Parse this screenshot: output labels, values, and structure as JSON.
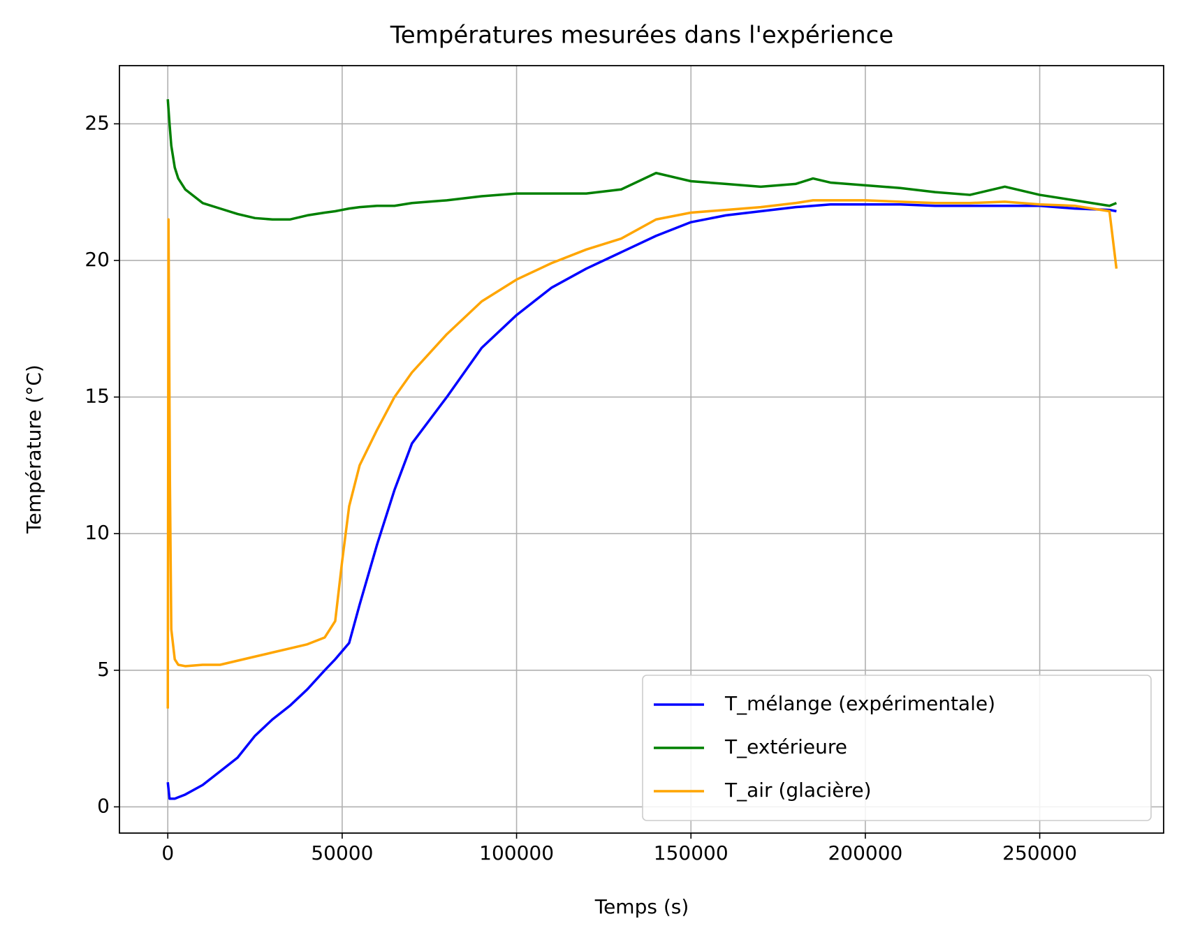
{
  "chart_data": {
    "type": "line",
    "title": "Températures mesurées dans l'expérience",
    "xlabel": "Temps (s)",
    "ylabel": "Température (°C)",
    "xlim": [
      -13865,
      285530
    ],
    "ylim": [
      -0.96,
      27.13
    ],
    "xticks": [
      0,
      50000,
      100000,
      150000,
      200000,
      250000
    ],
    "yticks": [
      0,
      5,
      10,
      15,
      20,
      25
    ],
    "grid": true,
    "legend": "lower right",
    "series": [
      {
        "name": "T_mélange (expérimentale)",
        "color": "#0000ff",
        "x": [
          0,
          500,
          1000,
          2000,
          3000,
          5000,
          10000,
          15000,
          20000,
          25000,
          30000,
          35000,
          40000,
          45000,
          48000,
          50000,
          52000,
          55000,
          60000,
          65000,
          70000,
          80000,
          90000,
          100000,
          110000,
          120000,
          130000,
          140000,
          150000,
          160000,
          170000,
          180000,
          185000,
          190000,
          200000,
          210000,
          220000,
          230000,
          240000,
          250000,
          260000,
          270000,
          272000
        ],
        "values": [
          0.9,
          0.3,
          0.3,
          0.3,
          0.35,
          0.45,
          0.8,
          1.3,
          1.8,
          2.6,
          3.2,
          3.7,
          4.3,
          5.0,
          5.4,
          5.7,
          6.0,
          7.4,
          9.6,
          11.6,
          13.3,
          15.0,
          16.8,
          18.0,
          19.0,
          19.7,
          20.3,
          20.9,
          21.4,
          21.65,
          21.8,
          21.95,
          22.0,
          22.05,
          22.05,
          22.05,
          22.0,
          22.0,
          22.0,
          22.0,
          21.9,
          21.85,
          21.8
        ]
      },
      {
        "name": "T_extérieure",
        "color": "#008000",
        "x": [
          0,
          500,
          1000,
          2000,
          3000,
          5000,
          10000,
          15000,
          20000,
          25000,
          30000,
          35000,
          40000,
          45000,
          48000,
          50000,
          52000,
          55000,
          60000,
          65000,
          70000,
          80000,
          90000,
          100000,
          110000,
          120000,
          130000,
          140000,
          150000,
          160000,
          170000,
          180000,
          185000,
          190000,
          200000,
          210000,
          220000,
          230000,
          240000,
          250000,
          260000,
          270000,
          272000
        ],
        "values": [
          25.9,
          25.0,
          24.2,
          23.4,
          23.0,
          22.6,
          22.1,
          21.9,
          21.7,
          21.55,
          21.5,
          21.5,
          21.65,
          21.75,
          21.8,
          21.85,
          21.9,
          21.95,
          22.0,
          22.0,
          22.1,
          22.2,
          22.35,
          22.45,
          22.45,
          22.45,
          22.6,
          23.2,
          22.9,
          22.8,
          22.7,
          22.8,
          23.0,
          22.85,
          22.75,
          22.65,
          22.5,
          22.4,
          22.7,
          22.4,
          22.2,
          22.0,
          22.1
        ]
      },
      {
        "name": "T_air (glacière)",
        "color": "#ffa500",
        "x": [
          0,
          200,
          600,
          1000,
          2000,
          3000,
          5000,
          10000,
          15000,
          20000,
          25000,
          30000,
          35000,
          40000,
          45000,
          48000,
          50000,
          52000,
          55000,
          60000,
          65000,
          70000,
          80000,
          90000,
          100000,
          110000,
          120000,
          130000,
          140000,
          150000,
          160000,
          170000,
          180000,
          185000,
          190000,
          200000,
          210000,
          220000,
          230000,
          240000,
          250000,
          260000,
          270000,
          272000
        ],
        "values": [
          3.6,
          21.5,
          12,
          6.5,
          5.4,
          5.2,
          5.15,
          5.2,
          5.2,
          5.35,
          5.5,
          5.65,
          5.8,
          5.95,
          6.2,
          6.8,
          9.0,
          11.0,
          12.5,
          13.8,
          15.0,
          15.9,
          17.3,
          18.5,
          19.3,
          19.9,
          20.4,
          20.8,
          21.5,
          21.75,
          21.85,
          21.95,
          22.1,
          22.2,
          22.2,
          22.2,
          22.15,
          22.1,
          22.1,
          22.15,
          22.05,
          22.0,
          21.8,
          19.7
        ]
      }
    ]
  }
}
